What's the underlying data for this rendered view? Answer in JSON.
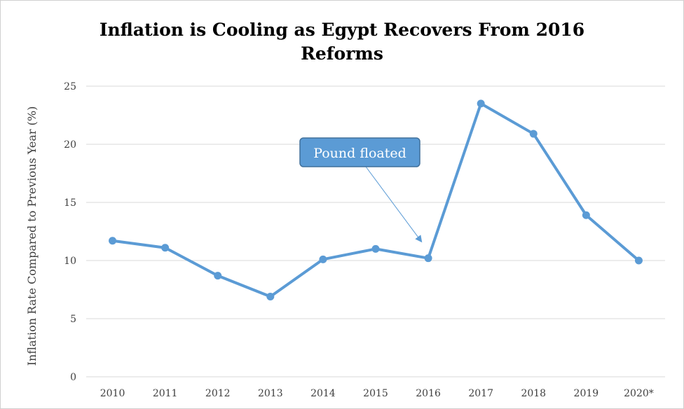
{
  "chart_data": {
    "type": "line",
    "title_lines": [
      "Inflation is Cooling as Egypt Recovers From 2016",
      "Reforms"
    ],
    "ylabel": "Inflation Rate Compared to Previous Year (%)",
    "xlabel": "",
    "categories": [
      "2010",
      "2011",
      "2012",
      "2013",
      "2014",
      "2015",
      "2016",
      "2017",
      "2018",
      "2019",
      "2020*"
    ],
    "series": [
      {
        "values": [
          11.7,
          11.1,
          8.7,
          6.9,
          10.1,
          11.0,
          10.2,
          23.5,
          20.9,
          13.9,
          10.0
        ]
      }
    ],
    "ylim": [
      0,
      25
    ],
    "yticks": [
      0,
      5,
      10,
      15,
      20,
      25
    ],
    "grid": true,
    "legend": "none",
    "annotation": {
      "text": "Pound floated",
      "target_category": "2016"
    },
    "colors": {
      "line": "#5b9bd5",
      "grid": "#d9d9d9",
      "callout_fill": "#5b9bd5",
      "callout_border": "#41719c",
      "arrow": "#5b9bd5"
    }
  }
}
